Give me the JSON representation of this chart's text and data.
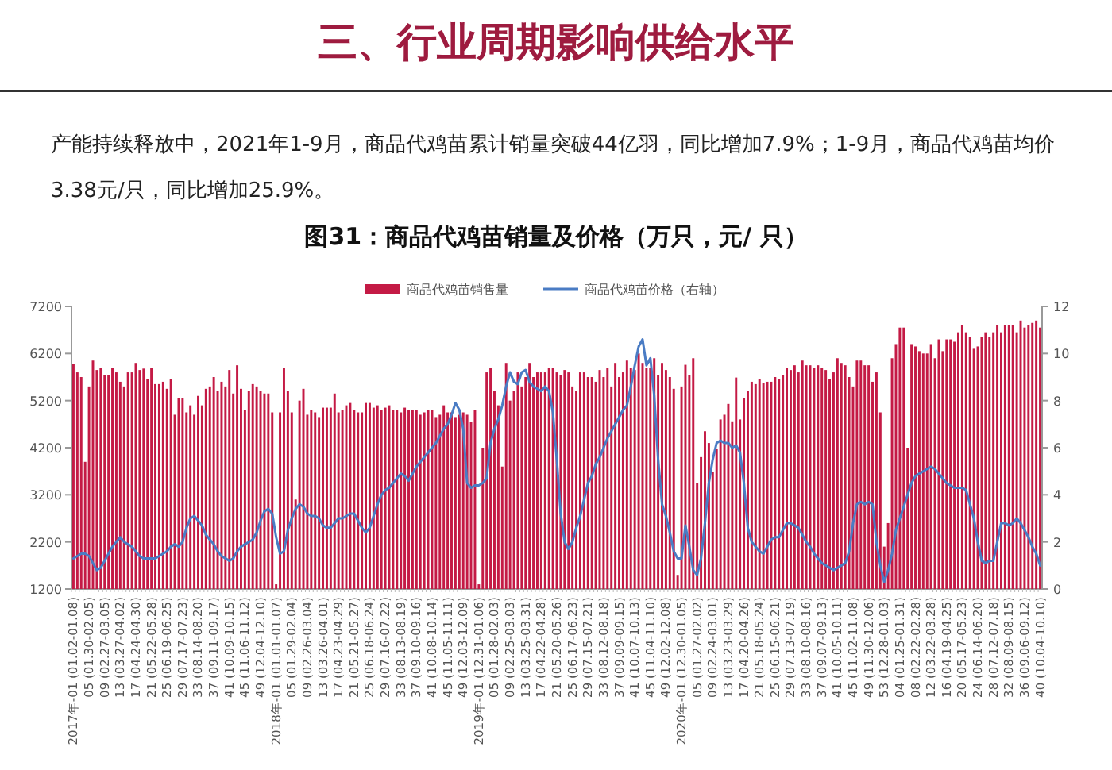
{
  "chart_data": {
    "type": "bar",
    "title": "图31：商品代鸡苗销量及价格（万只，元/ 只）",
    "annotations": [
      "三、行业周期影响供给水平",
      "产能持续释放中，2021年1-9月，商品代鸡苗累计销量突破44亿羽，同比增加7.9%；1-9月，商品代鸡苗均价3.38元/只，同比增加25.9%。"
    ],
    "categories": [
      "2017年-01 (01.02-01.08)",
      null,
      null,
      null,
      "05 (01.30-02.05)",
      null,
      null,
      null,
      "09 (02.27-03.05)",
      null,
      null,
      null,
      "13 (03.27-04.02)",
      null,
      null,
      null,
      "17 (04.24-04.30)",
      null,
      null,
      null,
      "21 (05.22-05.28)",
      null,
      null,
      null,
      "25 (06.19-06.25)",
      null,
      null,
      null,
      "29 (07.17-07.23)",
      null,
      null,
      null,
      "33 (08.14-08.20)",
      null,
      null,
      null,
      "37 (09.11-09.17)",
      null,
      null,
      null,
      "41 (10.09-10.15)",
      null,
      null,
      null,
      "45 (11.06-11.12)",
      null,
      null,
      null,
      "49 (12.04-12.10)",
      null,
      null,
      null,
      "2018年-01 (01.01-01.07)",
      null,
      null,
      null,
      "05 (01.29-02.04)",
      null,
      null,
      null,
      "09 (02.26-03.04)",
      null,
      null,
      null,
      "13 (03.26-04.01)",
      null,
      null,
      null,
      "17 (04.23-04.29)",
      null,
      null,
      null,
      "21 (05.21-05.27)",
      null,
      null,
      null,
      "25 (06.18-06.24)",
      null,
      null,
      null,
      "29 (07.16-07.22)",
      null,
      null,
      null,
      "33 (08.13-08.19)",
      null,
      null,
      null,
      "37 (09.10-09.16)",
      null,
      null,
      null,
      "41 (10.08-10.14)",
      null,
      null,
      null,
      "45 (11.05-11.11)",
      null,
      null,
      null,
      "49 (12.03-12.09)",
      null,
      null,
      null,
      "2019年-01 (12.31-01.06)",
      null,
      null,
      null,
      "05 (01.28-02.03)",
      null,
      null,
      null,
      "09 (02.25-03.03)",
      null,
      null,
      null,
      "13 (03.25-03.31)",
      null,
      null,
      null,
      "17 (04.22-04.28)",
      null,
      null,
      null,
      "21 (05.20-05.26)",
      null,
      null,
      null,
      "25 (06.17-06.23)",
      null,
      null,
      null,
      "29 (07.15-07.21)",
      null,
      null,
      null,
      "33 (08.12-08.18)",
      null,
      null,
      null,
      "37 (09.09-09.15)",
      null,
      null,
      null,
      "41 (10.07-10.13)",
      null,
      null,
      null,
      "45 (11.04-11.10)",
      null,
      null,
      null,
      "49 (12.02-12.08)",
      null,
      null,
      null,
      "2020年-01 (12.30-01.05)",
      null,
      null,
      null,
      "05 (01.27-02.02)",
      null,
      null,
      null,
      "09 (02.24-03.01)",
      null,
      null,
      null,
      "13 (03.23-03.29)",
      null,
      null,
      null,
      "17 (04.20-04.26)",
      null,
      null,
      null,
      "21 (05.18-05.24)",
      null,
      null,
      null,
      "25 (06.15-06.21)",
      null,
      null,
      null,
      "29 (07.13-07.19)",
      null,
      null,
      null,
      "33 (08.10-08.16)",
      null,
      null,
      null,
      "37 (09.07-09.13)",
      null,
      null,
      null,
      "41 (10.05-10.11)",
      null,
      null,
      null,
      "45 (11.02-11.08)",
      null,
      null,
      null,
      "49 (11.30-12.06)",
      null,
      null,
      null,
      "53 (12.28-01.03)",
      null,
      null,
      null,
      "04 (01.25-01.31)",
      null,
      null,
      null,
      "08 (02.22-02.28)",
      null,
      null,
      null,
      "12 (03.22-03.28)",
      null,
      null,
      null,
      "16 (04.19-04.25)",
      null,
      null,
      null,
      "20 (05.17-05.23)",
      null,
      null,
      null,
      "24 (06.14-06.20)",
      null,
      null,
      null,
      "28 (07.12-07.18)",
      null,
      null,
      null,
      "32 (08.09-08.15)",
      null,
      null,
      null,
      "36 (09.06-09.12)",
      null,
      null,
      null,
      "40 (10.04-10.10)"
    ],
    "series": [
      {
        "name": "商品代鸡苗销售量",
        "type": "bar",
        "color": "#c41a45",
        "values": [
          5980,
          5800,
          5700,
          3900,
          5500,
          6050,
          5850,
          5900,
          5750,
          5750,
          5900,
          5800,
          5600,
          5500,
          5800,
          5800,
          6000,
          5850,
          5880,
          5650,
          5900,
          5550,
          5550,
          5600,
          5450,
          5650,
          4900,
          5250,
          5250,
          4950,
          5100,
          4900,
          5300,
          5100,
          5450,
          5500,
          5700,
          5400,
          5600,
          5500,
          5850,
          5350,
          5950,
          5450,
          5000,
          5400,
          5550,
          5500,
          5400,
          5350,
          5350,
          4950,
          1300,
          4950,
          5900,
          5400,
          4950,
          3100,
          5200,
          5450,
          4900,
          5000,
          4950,
          4850,
          5050,
          5050,
          5050,
          5350,
          4950,
          5000,
          5100,
          5150,
          5000,
          4950,
          4950,
          5150,
          5150,
          5050,
          5100,
          5000,
          5050,
          5100,
          5000,
          5000,
          4950,
          5050,
          5000,
          5000,
          5000,
          4900,
          4950,
          5000,
          5000,
          4850,
          4900,
          5100,
          4950,
          4950,
          4850,
          4900,
          4950,
          4900,
          4750,
          5000,
          1300,
          4200,
          5800,
          5900,
          5400,
          5100,
          3800,
          6000,
          5200,
          5400,
          5800,
          5500,
          5700,
          6000,
          5700,
          5800,
          5800,
          5800,
          5900,
          5900,
          5800,
          5750,
          5850,
          5800,
          5500,
          5400,
          5800,
          5800,
          5700,
          5700,
          5600,
          5850,
          5700,
          5900,
          5500,
          6000,
          5700,
          5800,
          6050,
          5900,
          5850,
          6200,
          6000,
          5900,
          5900,
          6100,
          5750,
          6000,
          5850,
          5700,
          5450,
          1500,
          5500,
          5960,
          5740,
          6100,
          3450,
          4000,
          4550,
          4300,
          3680,
          4180,
          4800,
          4900,
          5130,
          4760,
          5690,
          4800,
          5260,
          5410,
          5600,
          5550,
          5650,
          5580,
          5600,
          5600,
          5700,
          5650,
          5750,
          5900,
          5850,
          5950,
          5800,
          6050,
          5950,
          5950,
          5900,
          5950,
          5900,
          5850,
          5650,
          5800,
          6100,
          6000,
          5950,
          5700,
          5500,
          6050,
          6050,
          5950,
          5950,
          5600,
          5800,
          4950,
          2100,
          2600,
          6100,
          6400,
          6750,
          6750,
          4200,
          6400,
          6350,
          6250,
          6200,
          6200,
          6400,
          6100,
          6500,
          6250,
          6500,
          6500,
          6450,
          6650,
          6800,
          6650,
          6550,
          6300,
          6350,
          6550,
          6650,
          6550,
          6650,
          6800,
          6650,
          6800,
          6800,
          6800,
          6650,
          6900,
          6750,
          6800,
          6850,
          6900,
          6750
        ]
      },
      {
        "name": "商品代鸡苗价格（右轴）",
        "type": "line",
        "axis": "y2",
        "color": "#4a7cc4",
        "values": [
          1.3,
          1.4,
          1.5,
          1.5,
          1.4,
          1.1,
          0.8,
          0.9,
          1.2,
          1.5,
          1.8,
          2.0,
          2.2,
          2.0,
          1.9,
          1.8,
          1.6,
          1.4,
          1.3,
          1.3,
          1.3,
          1.3,
          1.4,
          1.5,
          1.6,
          1.8,
          1.9,
          1.8,
          2.0,
          2.6,
          3.0,
          3.1,
          2.9,
          2.7,
          2.3,
          2.1,
          1.9,
          1.6,
          1.4,
          1.3,
          1.2,
          1.3,
          1.6,
          1.8,
          1.9,
          2.0,
          2.1,
          2.4,
          2.9,
          3.3,
          3.4,
          3.2,
          2.2,
          1.5,
          1.6,
          2.5,
          3.0,
          3.4,
          3.6,
          3.5,
          3.2,
          3.1,
          3.1,
          3.0,
          2.7,
          2.6,
          2.6,
          2.8,
          3.0,
          3.0,
          3.1,
          3.2,
          3.2,
          2.9,
          2.6,
          2.4,
          2.6,
          3.1,
          3.6,
          4.0,
          4.2,
          4.3,
          4.5,
          4.7,
          4.9,
          4.8,
          4.6,
          4.9,
          5.2,
          5.4,
          5.6,
          5.8,
          6.0,
          6.2,
          6.5,
          6.8,
          7.0,
          7.4,
          7.9,
          7.6,
          6.8,
          4.5,
          4.3,
          4.4,
          4.4,
          4.5,
          4.7,
          6.2,
          6.8,
          7.2,
          7.8,
          8.6,
          9.2,
          8.8,
          8.7,
          9.2,
          9.3,
          8.8,
          8.6,
          8.5,
          8.4,
          8.6,
          8.4,
          7.5,
          5.5,
          3.2,
          2.0,
          1.7,
          2.0,
          2.6,
          3.1,
          3.8,
          4.5,
          4.8,
          5.3,
          5.6,
          6.0,
          6.4,
          6.7,
          7.0,
          7.3,
          7.6,
          7.8,
          8.6,
          9.5,
          10.3,
          10.6,
          9.5,
          9.8,
          8.2,
          5.5,
          3.6,
          3.1,
          2.4,
          1.6,
          1.3,
          1.3,
          2.7,
          1.8,
          0.8,
          0.6,
          1.3,
          2.8,
          4.5,
          5.5,
          6.2,
          6.3,
          6.2,
          6.2,
          6.0,
          6.1,
          5.8,
          4.5,
          2.6,
          2.0,
          1.8,
          1.6,
          1.5,
          1.8,
          2.1,
          2.2,
          2.2,
          2.5,
          2.8,
          2.8,
          2.7,
          2.6,
          2.3,
          2.0,
          1.8,
          1.5,
          1.3,
          1.1,
          1.0,
          0.9,
          0.8,
          0.9,
          1.0,
          1.1,
          1.6,
          2.8,
          3.6,
          3.7,
          3.6,
          3.7,
          3.6,
          2.0,
          1.0,
          0.3,
          0.8,
          1.5,
          2.5,
          3.0,
          3.5,
          4.0,
          4.5,
          4.8,
          4.9,
          5.0,
          5.1,
          5.2,
          5.1,
          4.9,
          4.7,
          4.5,
          4.4,
          4.3,
          4.3,
          4.3,
          4.2,
          3.6,
          3.0,
          2.0,
          1.2,
          1.1,
          1.2,
          1.2,
          2.0,
          2.8,
          2.8,
          2.7,
          2.8,
          3.0,
          2.8,
          2.5,
          2.2,
          1.8,
          1.5,
          1.0
        ]
      }
    ],
    "ylim": [
      1200,
      7200
    ],
    "yticks": [
      1200,
      2200,
      3200,
      4200,
      5200,
      6200,
      7200
    ],
    "y2lim": [
      0,
      12
    ],
    "y2ticks": [
      0,
      2,
      4,
      6,
      8,
      10,
      12
    ],
    "legend": "top"
  }
}
